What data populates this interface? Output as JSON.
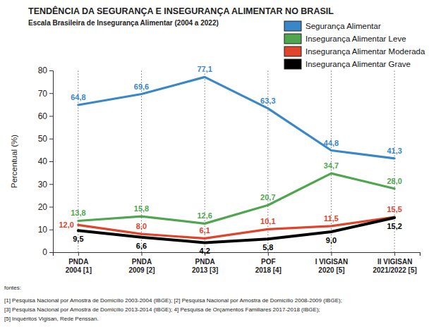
{
  "chart_data": {
    "type": "line",
    "title": "TENDÊNCIA DA SEGURANÇA E INSEGURANÇA ALIMENTAR NO BRASIL",
    "subtitle": "Escala Brasileira de Insegurança Alimentar (2004 a 2022)",
    "ylabel": "Percentual (%)",
    "categories": [
      "PNDA 2004 [1]",
      "PNDA 2009 [2]",
      "PNDA 2013 [3]",
      "POF 2018 [4]",
      "I VIGISAN 2020 [5]",
      "II VIGISAN 2021/2022 [5]"
    ],
    "series": [
      {
        "name": "Segurança Alimentar",
        "color": "#3a87c8",
        "values": [
          64.8,
          69.6,
          77.1,
          63.3,
          44.8,
          41.3
        ],
        "value_labels": [
          "64,8",
          "69,6",
          "77,1",
          "63,3",
          "44,8",
          "41,3"
        ]
      },
      {
        "name": "Insegurança Alimentar Leve",
        "color": "#4fa64f",
        "values": [
          13.8,
          15.8,
          12.6,
          20.7,
          34.7,
          28.0
        ],
        "value_labels": [
          "13,8",
          "15,8",
          "12,6",
          "20,7",
          "34,7",
          "28,0"
        ]
      },
      {
        "name": "Insegurança Alimentar Moderada",
        "color": "#e0452c",
        "values": [
          12.0,
          8.0,
          6.1,
          10.1,
          11.5,
          15.5
        ],
        "value_labels": [
          "12,0",
          "8,0",
          "6,1",
          "10,1",
          "11,5",
          "15,5"
        ]
      },
      {
        "name": "Insegurança Alimentar Grave",
        "color": "#000000",
        "values": [
          9.5,
          6.6,
          4.2,
          5.8,
          9.0,
          15.2
        ],
        "value_labels": [
          "9,5",
          "6,6",
          "4,2",
          "5,8",
          "9,0",
          "15,2"
        ]
      }
    ],
    "ylim": [
      0,
      80
    ],
    "yticks": [
      0,
      10,
      20,
      30,
      40,
      50,
      60,
      70,
      80
    ],
    "grid": true,
    "legend": "top-right",
    "data_labels": true,
    "annotations": [
      "fontes:",
      "[1] Pesquisa Nacional por Amostra de Domicílio 2003-2004 (IBGE); [2] Pesquisa Nacional por Amostra de Domicílio 2008-2009 (IBGE);",
      "[3] Pesquisa Nacional por Amostra de Domicílio 2013-2014 (IBGE); 4] Pesquisa de Orçamentos Familiares 2017-2018 (IBGE);",
      "[5] Inquéritos Vigisan, Rede Penssan."
    ]
  }
}
